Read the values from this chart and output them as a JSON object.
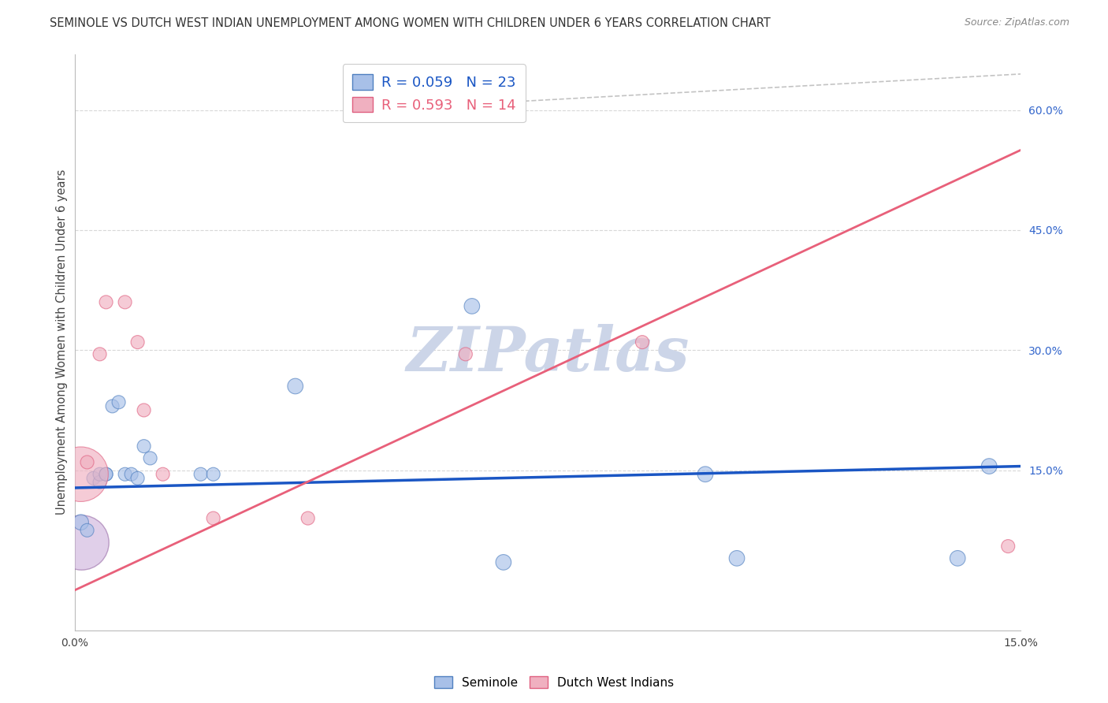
{
  "title": "SEMINOLE VS DUTCH WEST INDIAN UNEMPLOYMENT AMONG WOMEN WITH CHILDREN UNDER 6 YEARS CORRELATION CHART",
  "source": "Source: ZipAtlas.com",
  "ylabel": "Unemployment Among Women with Children Under 6 years",
  "ylabel_right_ticks": [
    "15.0%",
    "30.0%",
    "45.0%",
    "60.0%"
  ],
  "ylabel_right_vals": [
    0.15,
    0.3,
    0.45,
    0.6
  ],
  "xmin": 0.0,
  "xmax": 0.15,
  "ymin": -0.05,
  "ymax": 0.67,
  "seminole_x": [
    0.001,
    0.002,
    0.003,
    0.004,
    0.004,
    0.005,
    0.005,
    0.006,
    0.007,
    0.008,
    0.009,
    0.01,
    0.011,
    0.012,
    0.02,
    0.022,
    0.035,
    0.063,
    0.068,
    0.1,
    0.105,
    0.14,
    0.145
  ],
  "seminole_y": [
    0.085,
    0.075,
    0.14,
    0.135,
    0.145,
    0.145,
    0.145,
    0.23,
    0.235,
    0.145,
    0.145,
    0.14,
    0.18,
    0.165,
    0.145,
    0.145,
    0.255,
    0.355,
    0.035,
    0.145,
    0.04,
    0.04,
    0.155
  ],
  "seminole_sizes": [
    200,
    150,
    150,
    150,
    150,
    150,
    150,
    150,
    150,
    150,
    150,
    150,
    150,
    150,
    150,
    150,
    200,
    200,
    200,
    200,
    200,
    200,
    200
  ],
  "dutch_x": [
    0.001,
    0.002,
    0.004,
    0.005,
    0.008,
    0.01,
    0.011,
    0.014,
    0.022,
    0.037,
    0.062,
    0.062,
    0.09,
    0.148
  ],
  "dutch_y": [
    0.145,
    0.16,
    0.295,
    0.36,
    0.36,
    0.31,
    0.225,
    0.145,
    0.09,
    0.09,
    0.295,
    0.605,
    0.31,
    0.055
  ],
  "dutch_sizes": [
    2500,
    150,
    150,
    150,
    150,
    150,
    150,
    150,
    150,
    150,
    150,
    150,
    150,
    150
  ],
  "blue_line_color": "#1a56c4",
  "pink_line_color": "#e8607a",
  "blue_dot_face": "#a8c0e8",
  "blue_dot_edge": "#5080c0",
  "pink_dot_face": "#f0b0c0",
  "pink_dot_edge": "#e06080",
  "purple_dot_face": "#c8a8d8",
  "purple_dot_edge": "#9060a0",
  "grid_color": "#d8d8d8",
  "watermark_color": "#ccd5e8",
  "background_color": "#ffffff",
  "dashed_line_x": [
    0.057,
    0.15
  ],
  "dashed_line_y": [
    0.605,
    0.645
  ]
}
